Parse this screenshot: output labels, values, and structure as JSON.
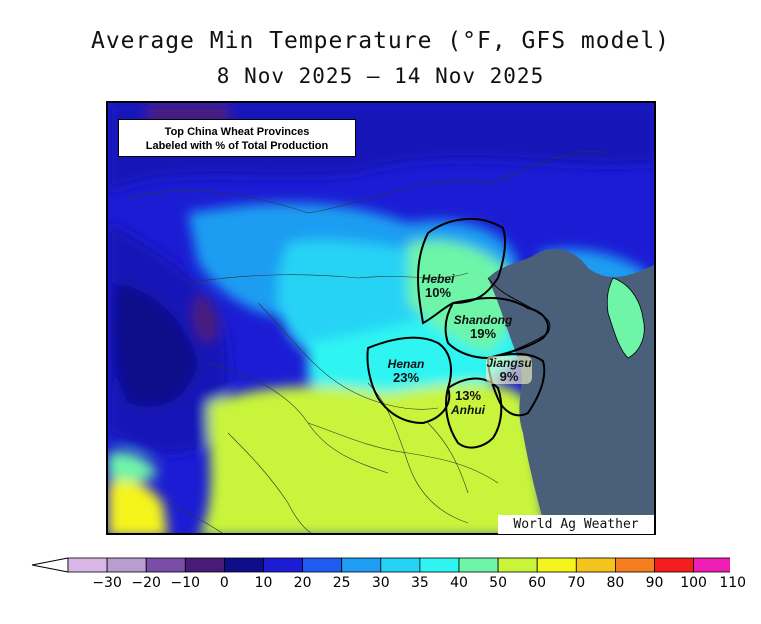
{
  "title": "Average Min Temperature (°F, GFS model)",
  "date_range": "8 Nov 2025 – 14 Nov 2025",
  "info_box": {
    "line1": "Top China Wheat Provinces",
    "line2": "Labeled with % of Total Production"
  },
  "credit": "World Ag Weather",
  "provinces": [
    {
      "name": "Hebei",
      "percent": "10%"
    },
    {
      "name": "Shandong",
      "percent": "19%"
    },
    {
      "name": "Henan",
      "percent": "23%"
    },
    {
      "name": "Jiangsu",
      "percent": "9%"
    },
    {
      "name": "Anhui",
      "percent": "13%"
    }
  ],
  "legend": {
    "ticks": [
      "-30",
      "-20",
      "-10",
      "0",
      "10",
      "20",
      "25",
      "30",
      "35",
      "40",
      "50",
      "60",
      "70",
      "80",
      "90",
      "100",
      "110"
    ],
    "colors": [
      "#d8b7e6",
      "#b89ed0",
      "#7a4ea8",
      "#4a1a78",
      "#0e0e8a",
      "#1c1cd4",
      "#1e5cf0",
      "#1f9df2",
      "#25d3f5",
      "#2ef5f2",
      "#6ef5a8",
      "#c8f53a",
      "#f5f51e",
      "#f5c31e",
      "#f57e1e",
      "#f51e1e",
      "#f01eb4"
    ],
    "low_arrow_color": "#ffffff",
    "high_arrow_color": "#f78ef0"
  },
  "colors": {
    "ocean": "#4a607a",
    "border": "#000000"
  }
}
